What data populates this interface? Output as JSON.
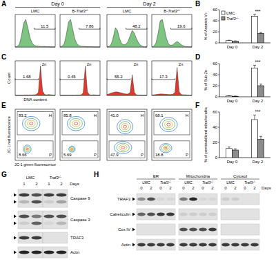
{
  "panel_labels": [
    "A",
    "B",
    "C",
    "D",
    "E",
    "F",
    "G",
    "H"
  ],
  "chart_data": [
    {
      "type": "bar",
      "y_label": "% of Annexin V+",
      "categories": [
        "Day 0",
        "Day 2"
      ],
      "series": [
        {
          "name": "LMC",
          "color": "#ffffff",
          "values": [
            4,
            48
          ],
          "errors": [
            0.8,
            3.5
          ]
        },
        {
          "name": "Traf3-/-",
          "color": "#8c8c8c",
          "values": [
            3,
            17
          ],
          "errors": [
            0.6,
            2
          ]
        }
      ],
      "ylim": [
        0,
        60
      ],
      "yticks": [
        0,
        20,
        40,
        60
      ],
      "legend": "upper-left",
      "annotations": [
        {
          "text": "***",
          "category": "Day 2"
        }
      ]
    },
    {
      "type": "bar",
      "y_label": "% of Sub 2n",
      "categories": [
        "Day 0",
        "Day 2"
      ],
      "series": [
        {
          "color": "#ffffff",
          "values": [
            1.5,
            52
          ],
          "errors": [
            0.4,
            5
          ]
        },
        {
          "color": "#8c8c8c",
          "values": [
            1,
            20
          ],
          "errors": [
            0.3,
            3
          ]
        }
      ],
      "ylim": [
        0,
        60
      ],
      "yticks": [
        0,
        20,
        40,
        60
      ],
      "annotations": [
        {
          "text": "***",
          "category": "Day 2"
        }
      ]
    },
    {
      "type": "bar",
      "y_label": "% of permeabilized mitochondria",
      "categories": [
        "Day 0",
        "Day 2"
      ],
      "series": [
        {
          "color": "#ffffff",
          "values": [
            12,
            50
          ],
          "errors": [
            2,
            6
          ]
        },
        {
          "color": "#8c8c8c",
          "values": [
            10,
            24
          ],
          "errors": [
            1.5,
            4
          ]
        }
      ],
      "ylim": [
        0,
        60
      ],
      "yticks": [
        0,
        20,
        40,
        60
      ],
      "annotations": [
        {
          "text": "***",
          "category": "Day 2"
        }
      ]
    }
  ],
  "flow": {
    "annexin": {
      "days": [
        "Day 0",
        "Day 2"
      ],
      "samples": [
        "LMC",
        "B-Traf3-/-",
        "LMC",
        "B-Traf3-/-"
      ],
      "color": "#7cc47f",
      "plots": [
        {
          "percent": "11.5",
          "gate": [
            9,
            19
          ],
          "counts": [
            0,
            0.02,
            0.1,
            0.4,
            0.85,
            1,
            0.7,
            0.35,
            0.15,
            0.06,
            0.04,
            0.03,
            0.02,
            0.02,
            0.02,
            0.01,
            0.01,
            0,
            0,
            0
          ]
        },
        {
          "percent": "7.86",
          "gate": [
            9,
            19
          ],
          "counts": [
            0,
            0.03,
            0.12,
            0.45,
            0.9,
            1,
            0.65,
            0.3,
            0.12,
            0.05,
            0.03,
            0.02,
            0.02,
            0.01,
            0.01,
            0.01,
            0,
            0,
            0,
            0
          ]
        },
        {
          "percent": "48.2",
          "gate": [
            9,
            19
          ],
          "counts": [
            0,
            0.02,
            0.1,
            0.35,
            0.7,
            0.6,
            0.3,
            0.12,
            0.08,
            0.1,
            0.2,
            0.4,
            0.6,
            0.5,
            0.3,
            0.15,
            0.06,
            0.02,
            0,
            0
          ]
        },
        {
          "percent": "19.6",
          "gate": [
            9,
            19
          ],
          "counts": [
            0,
            0.03,
            0.15,
            0.5,
            0.95,
            1,
            0.65,
            0.3,
            0.1,
            0.06,
            0.08,
            0.15,
            0.2,
            0.15,
            0.08,
            0.04,
            0.02,
            0.01,
            0,
            0
          ]
        }
      ]
    },
    "dna": {
      "y_label": "Count",
      "x_label": "DNA content",
      "peak_label": "2n",
      "color": "#e03a2f",
      "plots": [
        {
          "percent": "1.68",
          "gate": [
            0,
            11
          ],
          "counts": [
            0,
            0,
            0,
            0,
            0,
            0.01,
            0.01,
            0.01,
            0.01,
            0.02,
            0.03,
            0.1,
            1,
            0.15,
            0.03,
            0.02,
            0.03,
            0.02,
            0.01,
            0
          ]
        },
        {
          "percent": "0.45",
          "gate": [
            0,
            11
          ],
          "counts": [
            0,
            0,
            0,
            0,
            0,
            0,
            0,
            0,
            0.01,
            0.01,
            0.02,
            0.08,
            1,
            0.12,
            0.02,
            0.01,
            0.02,
            0.01,
            0,
            0
          ]
        },
        {
          "percent": "55.2",
          "gate": [
            0,
            11
          ],
          "counts": [
            0.03,
            0.05,
            0.08,
            0.1,
            0.12,
            0.12,
            0.1,
            0.08,
            0.06,
            0.05,
            0.05,
            0.1,
            0.7,
            0.1,
            0.02,
            0.01,
            0.01,
            0,
            0,
            0
          ]
        },
        {
          "percent": "17.3",
          "gate": [
            0,
            11
          ],
          "counts": [
            0.01,
            0.02,
            0.03,
            0.04,
            0.05,
            0.05,
            0.04,
            0.04,
            0.03,
            0.03,
            0.04,
            0.1,
            0.95,
            0.12,
            0.03,
            0.02,
            0.02,
            0.01,
            0,
            0
          ]
        }
      ]
    },
    "jc1": {
      "y_label": "JC-1 red fluorescence",
      "x_label": "JC-1 green fluorescence",
      "gate_names": [
        "H",
        "P"
      ],
      "plots": [
        {
          "percents": [
            "83.2",
            "8.66"
          ],
          "populations": [
            {
              "cx": 40,
              "cy": 72,
              "rx": 22,
              "ry": 14
            },
            {
              "cx": 30,
              "cy": 22,
              "rx": 10,
              "ry": 8
            }
          ]
        },
        {
          "percents": [
            "85.8",
            "5.69"
          ],
          "populations": [
            {
              "cx": 40,
              "cy": 72,
              "rx": 22,
              "ry": 14
            },
            {
              "cx": 30,
              "cy": 22,
              "rx": 8,
              "ry": 6
            }
          ]
        },
        {
          "percents": [
            "41.0",
            "47.9"
          ],
          "populations": [
            {
              "cx": 45,
              "cy": 66,
              "rx": 20,
              "ry": 14
            },
            {
              "cx": 40,
              "cy": 25,
              "rx": 22,
              "ry": 12
            }
          ]
        },
        {
          "percents": [
            "68.1",
            "18.8"
          ],
          "populations": [
            {
              "cx": 42,
              "cy": 70,
              "rx": 22,
              "ry": 14
            },
            {
              "cx": 35,
              "cy": 24,
              "rx": 15,
              "ry": 9
            }
          ]
        }
      ]
    }
  },
  "blots": {
    "G": {
      "groups": [
        "LMC",
        "Traf3-/-"
      ],
      "lanes": [
        "1",
        "2",
        "1",
        "2"
      ],
      "lane_axis": "Days",
      "rows": [
        {
          "label": "Caspase 9",
          "bands": [
            [
              0.8,
              0.7,
              0.8,
              0.8
            ],
            [
              0.2,
              0.7,
              0.1,
              0.3
            ]
          ]
        },
        {
          "label": "Caspase 3",
          "bands": [
            [
              0.7,
              0.5,
              0.7,
              0.7
            ],
            [
              0.1,
              0.6,
              0.05,
              0.2
            ]
          ]
        },
        {
          "label": "TRAF3",
          "bands": [
            [
              0.8,
              0.8,
              0,
              0
            ]
          ]
        },
        {
          "label": "Actin",
          "bands": [
            [
              0.9,
              0.9,
              0.9,
              0.9
            ]
          ]
        }
      ]
    },
    "H": {
      "groups": [
        "ER",
        "Mitochondria",
        "Cytosol"
      ],
      "subgroups": [
        "LMC",
        "Traf3-/-",
        "LMC",
        "Traf3-/-",
        "LMC",
        "Traf3-/-"
      ],
      "lanes": [
        "0",
        "2",
        "0",
        "2",
        "0",
        "2",
        "0",
        "2",
        "0",
        "2",
        "0",
        "2"
      ],
      "lane_axis": "Days",
      "rows": [
        {
          "label": "TRAF3",
          "bands": [
            [
              0.4,
              0.7,
              0.05,
              0.05,
              0.5,
              0.9,
              0.05,
              0.05,
              0.1,
              0.1,
              0,
              0
            ]
          ]
        },
        {
          "label": "Calreticulin",
          "bands": [
            [
              0.6,
              0.7,
              0.8,
              0.8,
              0.1,
              0.1,
              0.1,
              0.1,
              0,
              0,
              0,
              0
            ]
          ]
        },
        {
          "label": "Cox IV",
          "bands": [
            [
              0,
              0,
              0,
              0,
              0.7,
              0.7,
              0.7,
              0.8,
              0,
              0,
              0,
              0
            ]
          ]
        },
        {
          "label": "Actin",
          "bands": [
            [
              0.8,
              0.8,
              0.8,
              0.8,
              0.8,
              0.8,
              0.8,
              0.8,
              0.8,
              0.8,
              0.8,
              0.8
            ]
          ]
        }
      ]
    }
  }
}
